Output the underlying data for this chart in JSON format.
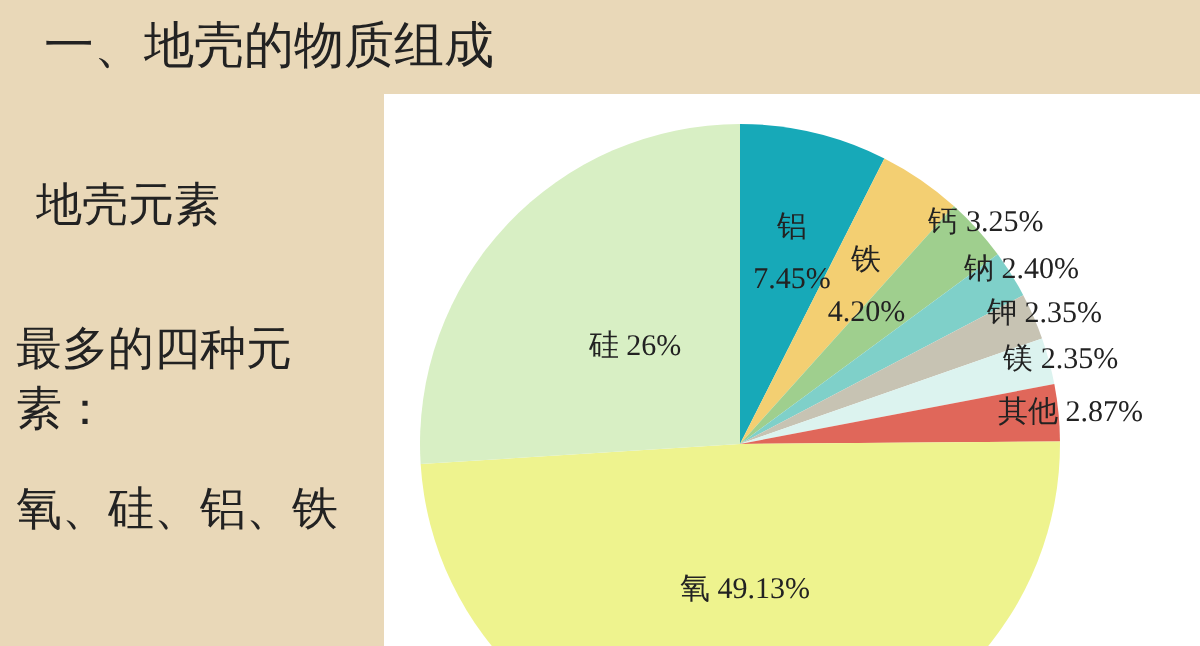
{
  "chart_data": {
    "type": "pie",
    "title": "一、地壳的物质组成",
    "categories": [
      "铝",
      "铁",
      "钙",
      "钠",
      "钾",
      "镁",
      "其他",
      "氧",
      "硅"
    ],
    "values": [
      7.45,
      4.2,
      3.25,
      2.4,
      2.35,
      2.35,
      2.87,
      49.13,
      26
    ],
    "value_labels": [
      "7.45%",
      "4.20%",
      "3.25%",
      "2.40%",
      "2.35%",
      "2.35%",
      "2.87%",
      "49.13%",
      "26%"
    ],
    "colors": [
      "#17a9b8",
      "#f3cf72",
      "#9fcf8e",
      "#7fd0c9",
      "#c7c3b3",
      "#dcf3ef",
      "#e0675a",
      "#eef38e",
      "#d8efc4"
    ],
    "annotations": [
      "地壳元素",
      "最多的四种元素：",
      "氧、硅、铝、铁"
    ]
  }
}
